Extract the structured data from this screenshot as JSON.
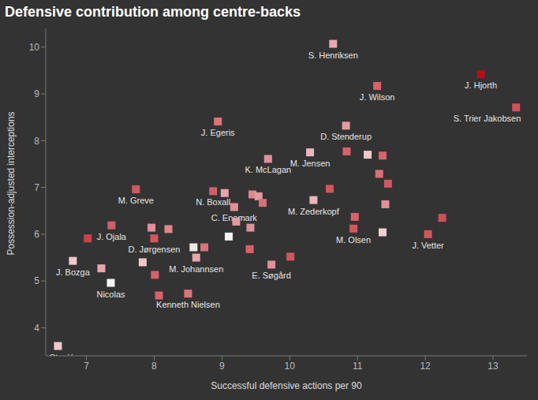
{
  "chart_data": {
    "type": "scatter",
    "title": "Defensive contribution among centre-backs",
    "x_label": "Successful defensive actions per 90",
    "y_label": "Possession-adjusted interceptions",
    "marker": "square",
    "grid": false,
    "xlim": [
      6.4,
      13.5
    ],
    "ylim": [
      3.4,
      10.4
    ],
    "xticks": [
      7,
      8,
      9,
      10,
      11,
      12,
      13
    ],
    "yticks": [
      4,
      5,
      6,
      7,
      8,
      9,
      10
    ],
    "x": [
      10.64,
      11.29,
      12.82,
      13.34,
      8.94,
      10.83,
      10.3,
      10.84,
      11.15,
      11.37,
      11.32,
      11.45,
      9.68,
      7.73,
      8.87,
      9.04,
      9.45,
      9.54,
      9.6,
      9.18,
      9.21,
      10.35,
      10.59,
      11.41,
      10.96,
      10.94,
      11.37,
      12.04,
      12.25,
      9.42,
      7.02,
      7.37,
      7.96,
      8.0,
      8.21,
      9.1,
      8.58,
      8.74,
      8.62,
      9.41,
      10.01,
      9.73,
      7.83,
      8.01,
      7.22,
      6.8,
      7.36,
      8.07,
      8.5,
      6.58
    ],
    "y": [
      10.07,
      9.17,
      9.42,
      8.71,
      8.41,
      8.32,
      7.75,
      7.77,
      7.7,
      7.68,
      7.29,
      7.08,
      7.61,
      6.96,
      6.92,
      6.88,
      6.85,
      6.81,
      6.67,
      6.58,
      6.27,
      6.73,
      6.97,
      6.64,
      6.37,
      6.12,
      6.04,
      6.0,
      6.35,
      6.14,
      5.91,
      6.19,
      6.14,
      5.91,
      6.11,
      5.95,
      5.72,
      5.72,
      5.5,
      5.68,
      5.52,
      5.35,
      5.4,
      5.13,
      5.27,
      5.43,
      4.96,
      4.69,
      4.73,
      3.61
    ],
    "labels": [
      "S. Henriksen",
      "J. Wilson",
      "J. Hjorth",
      "S. Trier Jakobsen",
      "J. Egeris",
      "D. Stenderup",
      "M. Jensen",
      null,
      null,
      null,
      null,
      null,
      "K. McLagan",
      "M. Greve",
      "N. Boxall",
      null,
      null,
      null,
      null,
      "C. Enemark",
      null,
      "M. Zederkopf",
      null,
      null,
      null,
      "M. Olsen",
      null,
      "J. Vetter",
      null,
      null,
      null,
      "J. Ojala",
      null,
      "D. Jørgensen",
      null,
      null,
      null,
      null,
      "M. Johannsen",
      null,
      null,
      "E. Søgård",
      null,
      null,
      null,
      "J. Bozga",
      "Nicolas",
      null,
      "Kenneth Nielsen",
      "I. Stanić"
    ],
    "colors": [
      "#e8a9b0",
      "#d9616b",
      "#b3101a",
      "#d2505a",
      "#d9747a",
      "#e29ba0",
      "#e8b7bb",
      "#d9616b",
      "#efc9cb",
      "#d9616b",
      "#db6d74",
      "#d3565f",
      "#e0909a",
      "#cd5a60",
      "#d06068",
      "#e8a5ab",
      "#e0868e",
      "#e29ba0",
      "#d77078",
      "#e0909a",
      "#e29ba0",
      "#e8b7bb",
      "#d3565f",
      "#e0909a",
      "#d9616b",
      "#d3565f",
      "#f0d0d2",
      "#d3565f",
      "#cd4f58",
      "#e0909a",
      "#c8434c",
      "#d06068",
      "#e0909a",
      "#d3565f",
      "#e0868e",
      "#f5f5f5",
      "#f0e6e6",
      "#d9747a",
      "#e8a5ab",
      "#d9616b",
      "#d3565f",
      "#e0909a",
      "#efc9cb",
      "#d9616b",
      "#e8a5ab",
      "#efc9cb",
      "#f5f5f5",
      "#d9616b",
      "#d9747a",
      "#efc9cb"
    ]
  }
}
